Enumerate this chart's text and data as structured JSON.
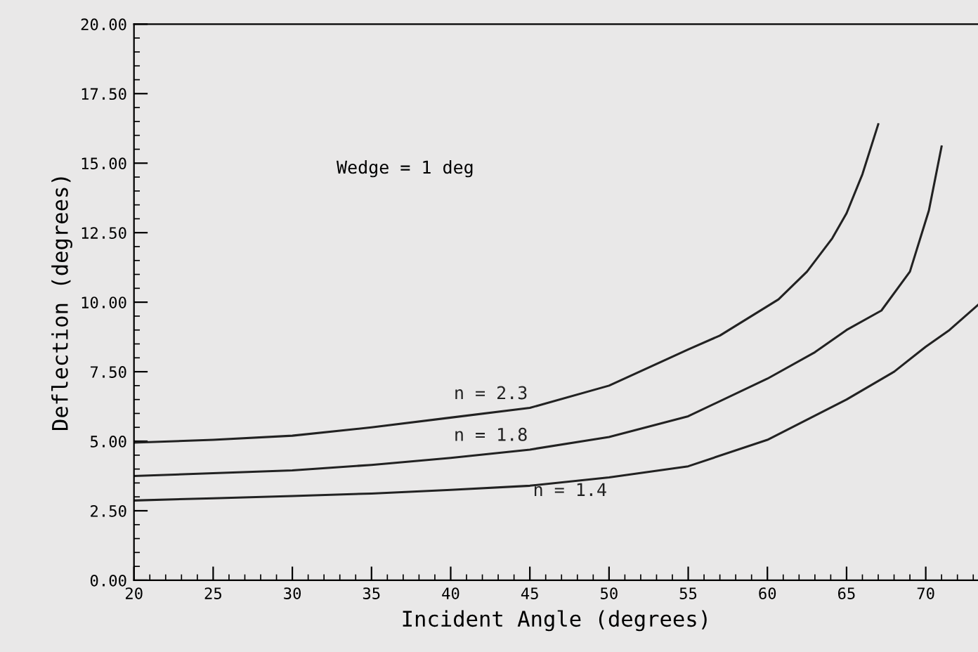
{
  "chart_data": {
    "type": "line",
    "xlabel": "Incident Angle (degrees)",
    "ylabel": "Deflection (degrees)",
    "annotations": [
      "Wedge = 1 deg"
    ],
    "series": [
      {
        "name": "n = 2.3",
        "color": "#222222",
        "x": [
          20,
          25,
          30,
          35,
          40,
          45,
          50,
          55,
          57,
          60.7,
          62.5,
          64.1,
          65,
          66,
          67
        ],
        "values": [
          4.95,
          5.05,
          5.2,
          5.5,
          5.85,
          6.2,
          7.0,
          8.3,
          8.8,
          10.1,
          11.1,
          12.3,
          13.2,
          14.6,
          16.4
        ]
      },
      {
        "name": "n = 1.8",
        "color": "#222222",
        "x": [
          20,
          25,
          30,
          35,
          40,
          45,
          50,
          55,
          60,
          63,
          65,
          67.2,
          69,
          70.2,
          71
        ],
        "values": [
          3.75,
          3.85,
          3.95,
          4.15,
          4.4,
          4.7,
          5.15,
          5.9,
          7.25,
          8.2,
          9.0,
          9.7,
          11.1,
          13.3,
          15.6
        ]
      },
      {
        "name": "n = 1.4",
        "color": "#222222",
        "x": [
          20,
          25,
          30,
          35,
          40,
          45,
          50,
          55,
          60,
          65,
          68,
          70,
          71.5,
          73.3
        ],
        "values": [
          2.87,
          2.95,
          3.03,
          3.12,
          3.25,
          3.4,
          3.7,
          4.1,
          5.05,
          6.5,
          7.5,
          8.4,
          9.0,
          9.9
        ]
      }
    ],
    "xlim": [
      20,
      73.3
    ],
    "xticks": [
      {
        "value": 20,
        "label": "20"
      },
      25,
      30,
      35,
      40,
      45,
      50,
      55,
      60,
      65,
      70
    ],
    "ylim": [
      0,
      20
    ],
    "yticks": [
      {
        "value": 0,
        "label": "0.00"
      },
      {
        "value": 2.5,
        "label": "2.50"
      },
      {
        "value": 5,
        "label": "5.00"
      },
      {
        "value": 7.5,
        "label": "7.50"
      },
      {
        "value": 10,
        "label": "10.00"
      },
      {
        "value": 12.5,
        "label": "12.50"
      },
      {
        "value": 15,
        "label": "15.00"
      },
      {
        "value": 17.5,
        "label": "17.50"
      },
      {
        "value": 20,
        "label": "20.00"
      }
    ],
    "grid": false,
    "legend": false,
    "marker": "none",
    "line_style": "solid"
  }
}
